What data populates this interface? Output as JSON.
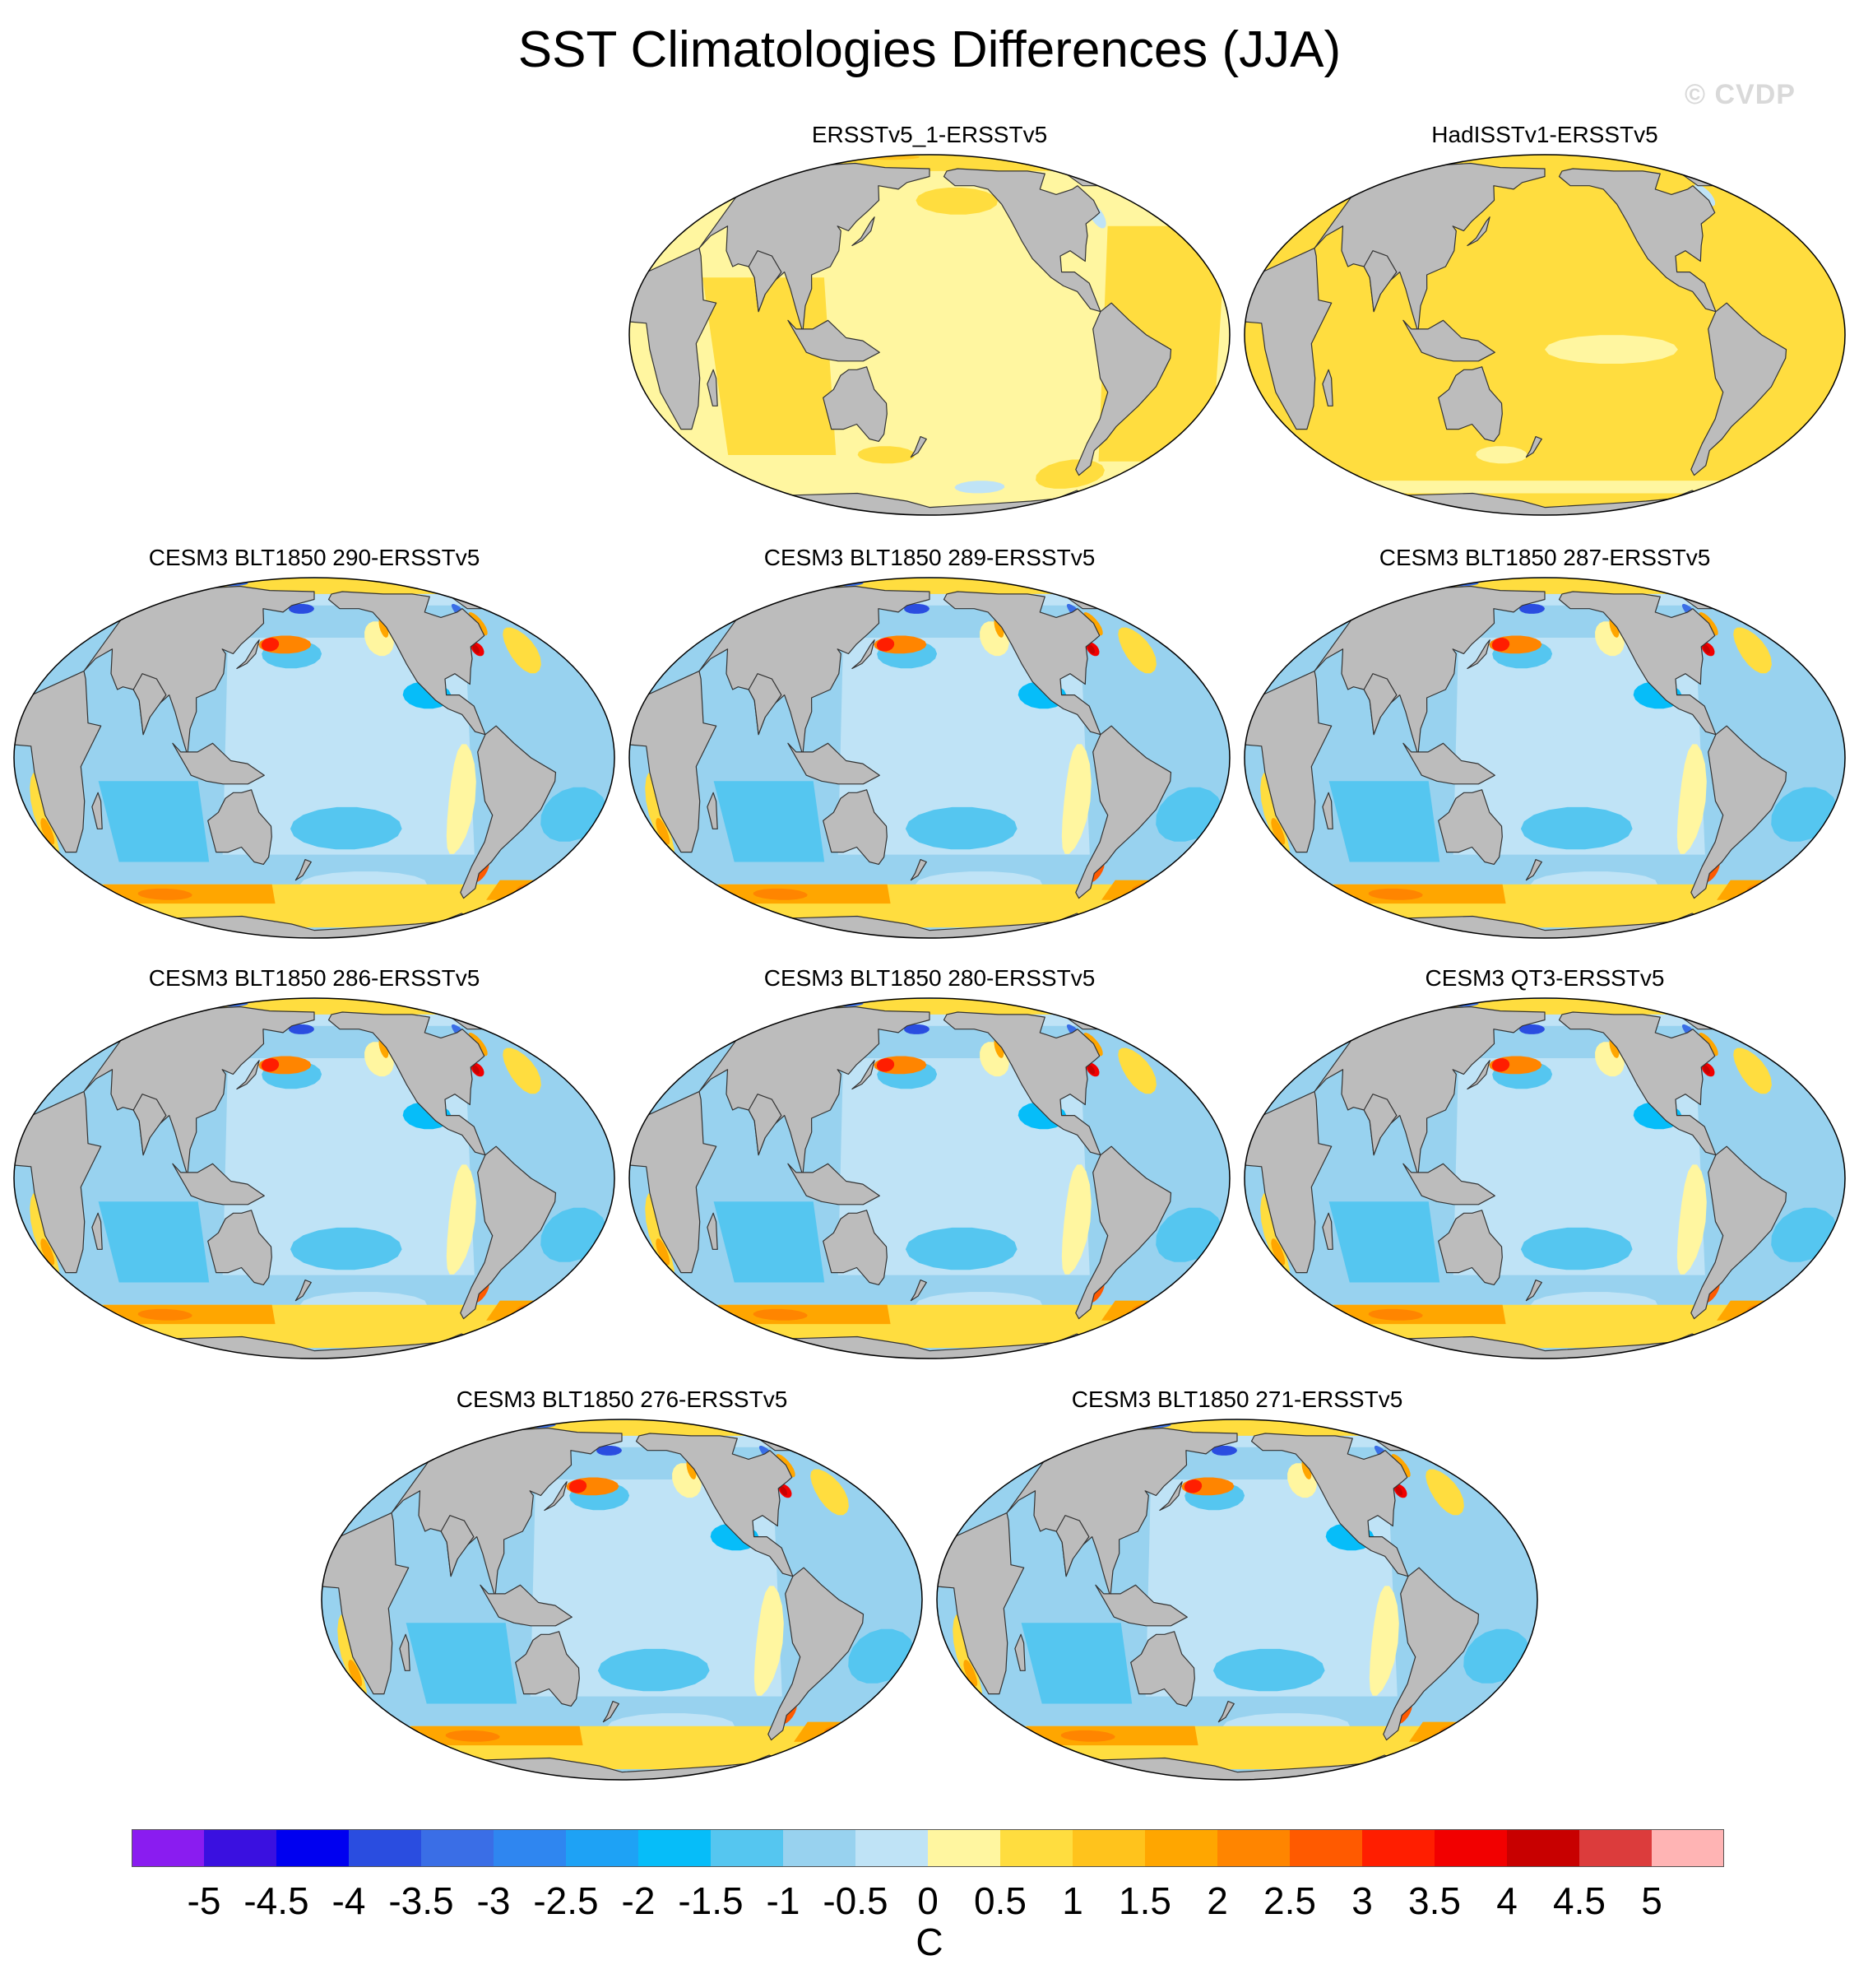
{
  "title": "SST Climatologies Differences (JJA)",
  "watermark": "© CVDP",
  "projection": "Robinson (Pacific-centered)",
  "colors": {
    "land": "#bcbcbc",
    "ocean_zero_warm": "#fff6a0",
    "coastline": "#333333"
  },
  "panels": [
    {
      "title": "ERSSTv5_1-ERSSTv5",
      "pattern": "obs_a"
    },
    {
      "title": "HadISSTv1-ERSSTv5",
      "pattern": "obs_b"
    },
    {
      "title": "CESM3 BLT1850 290-ERSSTv5",
      "pattern": "model"
    },
    {
      "title": "CESM3 BLT1850 289-ERSSTv5",
      "pattern": "model"
    },
    {
      "title": "CESM3 BLT1850 287-ERSSTv5",
      "pattern": "model"
    },
    {
      "title": "CESM3 BLT1850 286-ERSSTv5",
      "pattern": "model"
    },
    {
      "title": "CESM3 BLT1850 280-ERSSTv5",
      "pattern": "model"
    },
    {
      "title": "CESM3 QT3-ERSSTv5",
      "pattern": "model"
    },
    {
      "title": "CESM3 BLT1850 276-ERSSTv5",
      "pattern": "model"
    },
    {
      "title": "CESM3 BLT1850 271-ERSSTv5",
      "pattern": "model"
    }
  ],
  "colorbar": {
    "units": "C",
    "tick_labels": [
      "-5",
      "-4.5",
      "-4",
      "-3.5",
      "-3",
      "-2.5",
      "-2",
      "-1.5",
      "-1",
      "-0.5",
      "0",
      "0.5",
      "1",
      "1.5",
      "2",
      "2.5",
      "3",
      "3.5",
      "4",
      "4.5",
      "5"
    ],
    "colors": [
      "#8a1cf0",
      "#3a10e0",
      "#0000f0",
      "#2a4de0",
      "#3a6ee6",
      "#2f86f0",
      "#1ea2f5",
      "#06bdf9",
      "#55c6f0",
      "#98d2ef",
      "#bfe3f6",
      "#fff6a0",
      "#ffdd3f",
      "#ffc31c",
      "#ffa600",
      "#ff8500",
      "#ff5a00",
      "#ff1e00",
      "#f20000",
      "#c80000",
      "#dc3c3c",
      "#ffb4b4"
    ]
  }
}
